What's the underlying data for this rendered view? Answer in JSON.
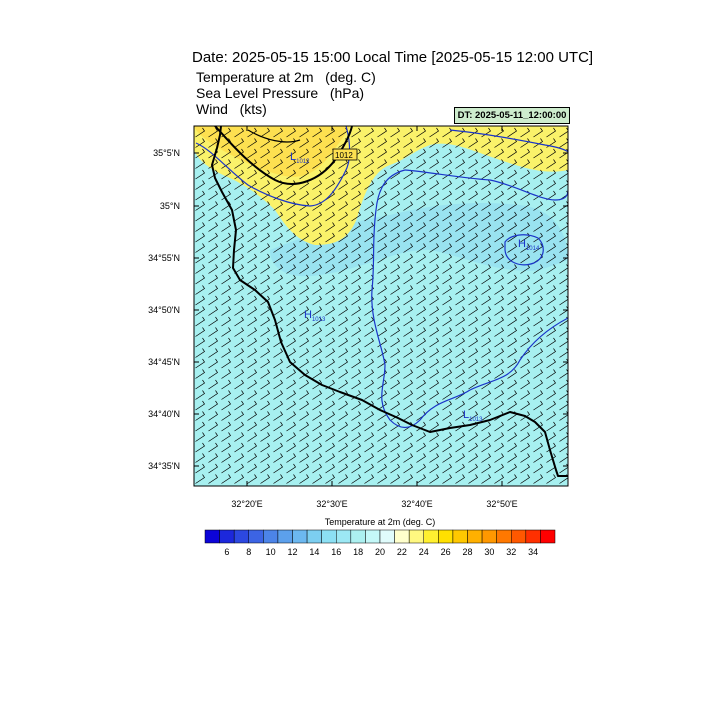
{
  "header": {
    "title": "Date: 2025-05-15  15:00 Local Time [2025-05-15  12:00 UTC]",
    "variables": [
      "Temperature at 2m   (deg. C)",
      "Sea Level Pressure   (hPa)",
      "Wind   (kts)"
    ],
    "dt_label": "DT: 2025-05-11_12:00:00"
  },
  "map": {
    "lat_labels": [
      "35°5'N",
      "35°N",
      "34°55'N",
      "34°50'N",
      "34°45'N",
      "34°40'N",
      "34°35'N"
    ],
    "lon_labels": [
      "32°20'E",
      "32°30'E",
      "32°40'E",
      "32°50'E"
    ],
    "pressure_labels": [
      {
        "text": "L",
        "sub": "1012"
      },
      {
        "text": "1012"
      },
      {
        "text": "H",
        "sub": "1014"
      },
      {
        "text": "H",
        "sub": "1013"
      },
      {
        "text": "L",
        "sub": "1013"
      }
    ],
    "colors": {
      "land": "#a7f0f0",
      "warm": "#fde050",
      "light_warm": "#faf26a",
      "contour": "#1a34c8",
      "coast": "#000000",
      "cool": "#8fdaf0"
    }
  },
  "colorbar": {
    "title": "Temperature at 2m  (deg. C)",
    "ticks": [
      "6",
      "8",
      "10",
      "12",
      "14",
      "16",
      "18",
      "20",
      "22",
      "24",
      "26",
      "28",
      "30",
      "32",
      "34"
    ],
    "colors": [
      "#0c04d8",
      "#1c28dc",
      "#2c48e0",
      "#3c64e4",
      "#4c84e8",
      "#5ca0ec",
      "#6cb8f0",
      "#7ccef0",
      "#8ce0f4",
      "#9ce8f4",
      "#acf0f0",
      "#c4f8f8",
      "#e0fcfc",
      "#ffffcc",
      "#fff880",
      "#fff030",
      "#ffe000",
      "#ffc800",
      "#ffb000",
      "#ff9800",
      "#ff7800",
      "#ff5800",
      "#ff3000",
      "#ff0000"
    ]
  }
}
